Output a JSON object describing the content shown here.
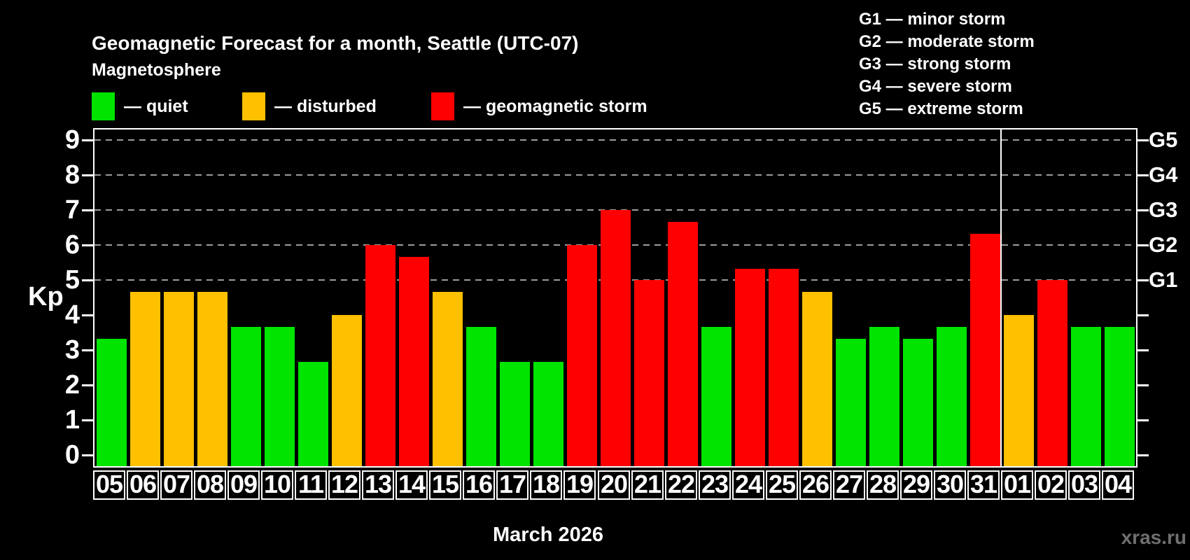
{
  "header": {
    "title": "Geomagnetic Forecast for a month, Seattle (UTC-07)",
    "subtitle": "Magnetosphere"
  },
  "legend": [
    {
      "id": "quiet",
      "label": "— quiet",
      "color": "#00e400"
    },
    {
      "id": "disturbed",
      "label": "— disturbed",
      "color": "#ffc000"
    },
    {
      "id": "storm",
      "label": "— geomagnetic storm",
      "color": "#ff0000"
    }
  ],
  "storm_scale_legend": [
    "G1 — minor storm",
    "G2 — moderate storm",
    "G3 — strong storm",
    "G4 — severe storm",
    "G5 — extreme storm"
  ],
  "watermark": "xras.ru",
  "chart_data": {
    "type": "bar",
    "title": "Geomagnetic Forecast for a month, Seattle (UTC-07)",
    "ylabel": "Kp",
    "xlabel": "March 2026",
    "ylim": [
      0,
      9
    ],
    "yticks": [
      0,
      1,
      2,
      3,
      4,
      5,
      6,
      7,
      8,
      9
    ],
    "gridlines_kp": [
      5,
      6,
      7,
      8,
      9
    ],
    "grid_style": "dashed",
    "right_axis": {
      "labels": [
        "G1",
        "G2",
        "G3",
        "G4",
        "G5"
      ],
      "kp_levels": [
        5,
        6,
        7,
        8,
        9
      ]
    },
    "categories": [
      "05",
      "06",
      "07",
      "08",
      "09",
      "10",
      "11",
      "12",
      "13",
      "14",
      "15",
      "16",
      "17",
      "18",
      "19",
      "20",
      "21",
      "22",
      "23",
      "24",
      "25",
      "26",
      "27",
      "28",
      "29",
      "30",
      "31",
      "01",
      "02",
      "03",
      "04"
    ],
    "values": [
      3.33,
      4.67,
      4.67,
      4.67,
      3.67,
      3.67,
      2.67,
      4.0,
      6.0,
      5.67,
      4.67,
      3.67,
      2.67,
      2.67,
      6.0,
      7.0,
      5.0,
      6.67,
      3.67,
      5.33,
      5.33,
      4.67,
      3.33,
      3.67,
      3.33,
      3.67,
      6.33,
      4.0,
      5.0,
      3.67,
      3.67
    ],
    "statuses": [
      "quiet",
      "disturbed",
      "disturbed",
      "disturbed",
      "quiet",
      "quiet",
      "quiet",
      "disturbed",
      "storm",
      "storm",
      "disturbed",
      "quiet",
      "quiet",
      "quiet",
      "storm",
      "storm",
      "storm",
      "storm",
      "quiet",
      "storm",
      "storm",
      "disturbed",
      "quiet",
      "quiet",
      "quiet",
      "quiet",
      "storm",
      "disturbed",
      "storm",
      "quiet",
      "quiet"
    ],
    "colors": {
      "quiet": "#00e400",
      "disturbed": "#ffc000",
      "storm": "#ff0000"
    },
    "month_separator_after": "31",
    "legend_position": "top"
  }
}
